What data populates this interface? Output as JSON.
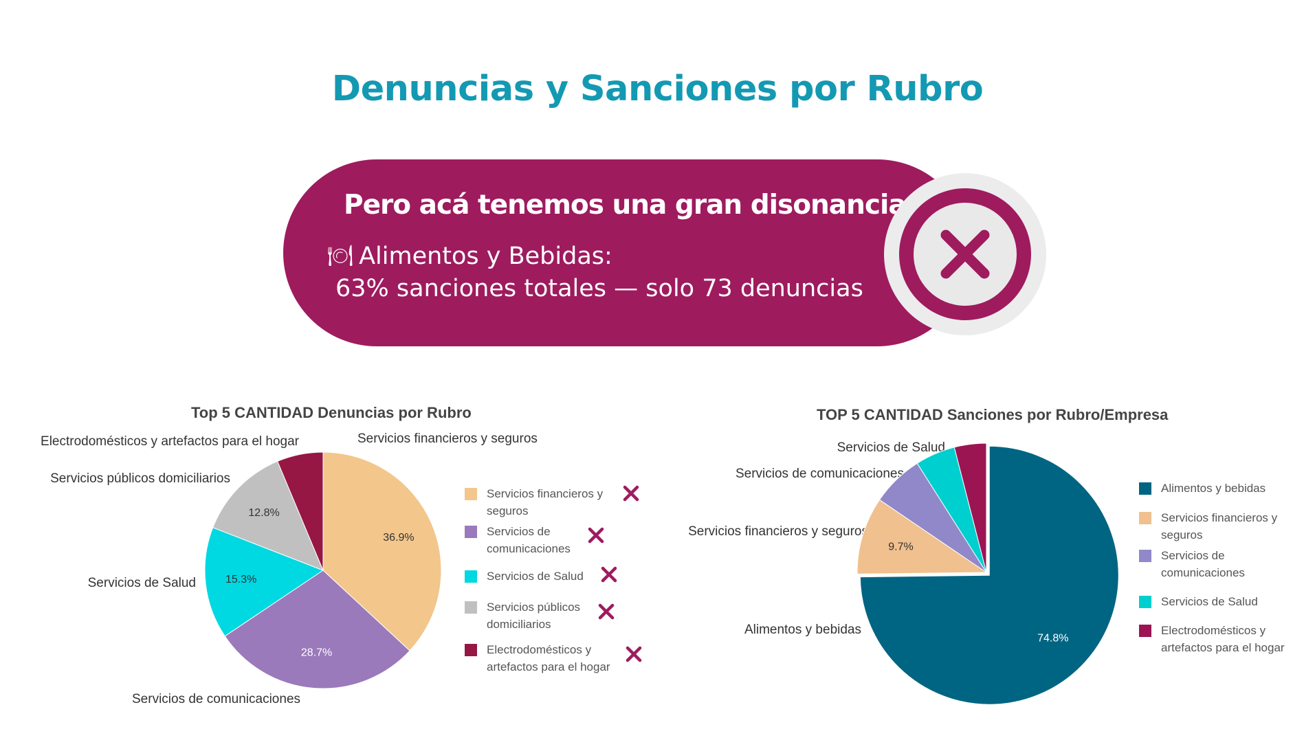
{
  "title": "Denuncias y Sanciones por Rubro",
  "banner": {
    "heading": "Pero acá tenemos una gran disonancia",
    "icon": "fork-knife-plate-icon",
    "line1": "Alimentos y Bebidas:",
    "line2": "63% sanciones totales — solo 73 denuncias",
    "badge_icon": "close-icon",
    "color": "#9e1b5e"
  },
  "chart_data": [
    {
      "type": "pie",
      "title": "Top 5 CANTIDAD Denuncias por Rubro",
      "categories": [
        "Servicios financieros y seguros",
        "Servicios de comunicaciones",
        "Servicios de Salud",
        "Servicios públicos domiciliarios",
        "Electrodomésticos y artefactos para el hogar"
      ],
      "values": [
        36.9,
        28.7,
        15.3,
        12.8,
        6.3
      ],
      "value_labels": [
        "36.9%",
        "28.7%",
        "15.3%",
        "12.8%",
        ""
      ],
      "colors": [
        "#f3c68c",
        "#9a7aba",
        "#00d8e2",
        "#c0c0c0",
        "#971744"
      ],
      "legend": {
        "position": "right",
        "entries": [
          "Servicios financieros y seguros",
          "Servicios de comunicaciones",
          "Servicios de Salud",
          "Servicios públicos domiciliarios",
          "Electrodomésticos y artefactos para el hogar"
        ],
        "marker_icon": "x-mark-icon"
      }
    },
    {
      "type": "pie",
      "title": "TOP 5 CANTIDAD Sanciones por Rubro/Empresa",
      "categories": [
        "Alimentos y bebidas",
        "Servicios financieros y seguros",
        "Servicios de comunicaciones",
        "Servicios de Salud",
        "Electrodomésticos y artefactos para el hogar"
      ],
      "values": [
        74.8,
        9.7,
        6.5,
        5.0,
        4.0
      ],
      "value_labels": [
        "74.8%",
        "9.7%",
        "",
        "",
        ""
      ],
      "exploded": "Alimentos y bebidas",
      "colors": [
        "#006582",
        "#f0c08e",
        "#9088c8",
        "#00cfcf",
        "#9b1553"
      ],
      "legend": {
        "position": "right",
        "entries": [
          "Alimentos y bebidas",
          "Servicios financieros y seguros",
          "Servicios de comunicaciones",
          "Servicios de Salud",
          "Electrodomésticos y artefactos para el hogar"
        ]
      }
    }
  ],
  "callouts": {
    "left": {
      "electro": "Electrodomésticos y artefactos para el hogar",
      "financieros": "Servicios financieros y seguros",
      "publicos": "Servicios públicos domiciliarios",
      "salud": "Servicios de Salud",
      "comunicaciones": "Servicios de comunicaciones"
    },
    "right": {
      "salud": "Servicios de Salud",
      "comunicaciones": "Servicios de comunicaciones",
      "financieros": "Servicios financieros y seguros",
      "alimentos": "Alimentos y bebidas"
    }
  },
  "colors": {
    "title": "#1499b3",
    "x_mark": "#9e1b5e"
  }
}
